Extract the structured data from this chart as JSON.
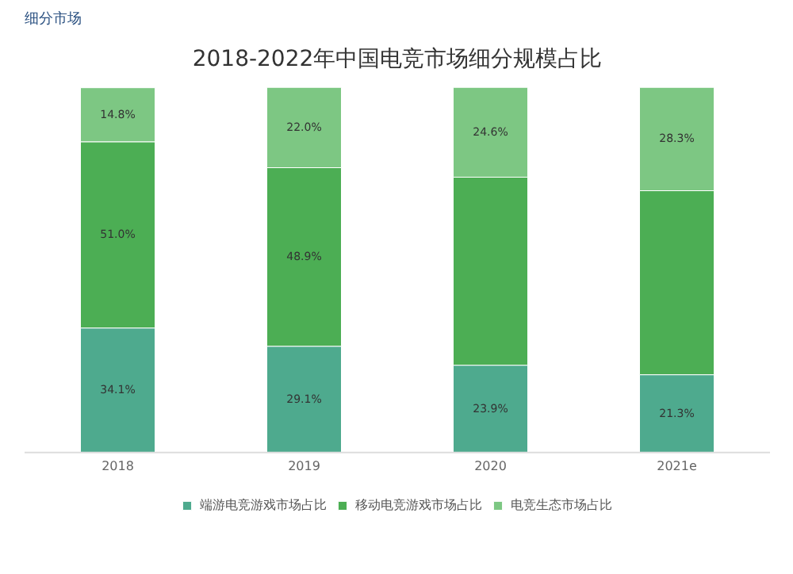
{
  "chart_data": {
    "type": "bar",
    "stacked": true,
    "title": "2018-2022年中国电竞市场细分规模占比",
    "annotations": [
      "细分市场"
    ],
    "categories": [
      "2018",
      "2019",
      "2020",
      "2021e"
    ],
    "series": [
      {
        "name": "端游电竞游戏市场占比",
        "color": "#4eaa8e",
        "values": [
          34.1,
          29.1,
          23.9,
          21.3
        ],
        "value_labels": [
          "34.1%",
          "29.1%",
          "23.9%",
          "21.3%"
        ]
      },
      {
        "name": "移动电竞游戏市场占比",
        "color": "#4cae54",
        "values": [
          51.0,
          48.9,
          51.5,
          50.4
        ],
        "value_labels": [
          "51.0%",
          "48.9%",
          null,
          null
        ]
      },
      {
        "name": "电竞生态市场占比",
        "color": "#7dc783",
        "values": [
          14.8,
          22.0,
          24.6,
          28.3
        ],
        "value_labels": [
          "14.8%",
          "22.0%",
          "24.6%",
          "28.3%"
        ]
      }
    ],
    "legend": "bottom"
  }
}
